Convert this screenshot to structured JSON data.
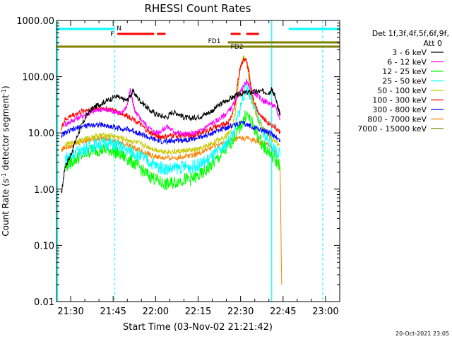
{
  "chart_data": {
    "type": "line",
    "title": "RHESSI Count Rates",
    "xlabel": "Start Time (03-Nov-02 21:21:42)",
    "ylabel_main": "Count Rate (s",
    "ylabel_sup1": "-1",
    "ylabel_mid": " detector segment",
    "ylabel_sup2": "-1",
    "ylabel_end": ")",
    "y_log": true,
    "ylim": [
      0.01,
      1000
    ],
    "xlim_min": [
      1285,
      1385
    ],
    "ytick_labels": [
      {
        "value": 0.01,
        "label": "0.01"
      },
      {
        "value": 0.1,
        "label": "0.10"
      },
      {
        "value": 1,
        "label": "1.00"
      },
      {
        "value": 10,
        "label": "10.00"
      },
      {
        "value": 100,
        "label": "100.00"
      },
      {
        "value": 1000,
        "label": "1000.00"
      }
    ],
    "xtick_labels": [
      {
        "value": 1290,
        "label": "21:30"
      },
      {
        "value": 1305,
        "label": "21:45"
      },
      {
        "value": 1320,
        "label": "22:00"
      },
      {
        "value": 1335,
        "label": "22:15"
      },
      {
        "value": 1350,
        "label": "22:30"
      },
      {
        "value": 1365,
        "label": "22:45"
      },
      {
        "value": 1380,
        "label": "23:00"
      }
    ],
    "legend_title": "Det 1f,3f,4f,5f,6f,9f,",
    "legend_subtitle": "Att 0",
    "legend_position": "right",
    "series": [
      {
        "name": "3 - 6 keV",
        "color": "#000000",
        "x": [
          1286.7,
          1288,
          1290,
          1292,
          1294,
          1296,
          1298,
          1300,
          1302,
          1304,
          1306,
          1308,
          1310,
          1312,
          1314,
          1316,
          1318,
          1320,
          1322,
          1324,
          1326,
          1328,
          1330,
          1332,
          1334,
          1336,
          1338,
          1340,
          1342,
          1344,
          1346,
          1348,
          1350,
          1352,
          1354,
          1356,
          1358,
          1360,
          1361,
          1362,
          1363,
          1364
        ],
        "y": [
          0.8,
          2.5,
          4,
          8,
          14,
          22,
          28,
          32,
          36,
          40,
          45,
          40,
          38,
          55,
          40,
          32,
          25,
          22,
          20,
          19,
          24,
          22,
          19,
          18,
          19,
          20,
          22,
          25,
          30,
          35,
          40,
          45,
          50,
          52,
          53,
          54,
          55,
          52,
          60,
          48,
          30,
          22
        ]
      },
      {
        "name": "6 - 12 keV",
        "color": "#ff00ff",
        "x": [
          1288,
          1290,
          1292,
          1294,
          1296,
          1298,
          1300,
          1302,
          1304,
          1306,
          1308,
          1310,
          1311,
          1312,
          1313,
          1314,
          1316,
          1318,
          1320,
          1322,
          1324,
          1326,
          1328,
          1330,
          1332,
          1334,
          1336,
          1338,
          1340,
          1342,
          1344,
          1346,
          1348,
          1350,
          1352,
          1354,
          1356,
          1358,
          1360,
          1362,
          1364
        ],
        "y": [
          14,
          16,
          18,
          20,
          22,
          24,
          26,
          26,
          25,
          24,
          22,
          32,
          60,
          34,
          22,
          20,
          15,
          12,
          10,
          11,
          13,
          11,
          10,
          9.5,
          9.5,
          10,
          11,
          13,
          15,
          17,
          20,
          25,
          35,
          55,
          80,
          60,
          45,
          38,
          34,
          30,
          18
        ]
      },
      {
        "name": "12 - 25 keV",
        "color": "#00ff00",
        "x": [
          1288,
          1290,
          1292,
          1294,
          1296,
          1298,
          1300,
          1302,
          1304,
          1306,
          1308,
          1310,
          1312,
          1314,
          1316,
          1318,
          1320,
          1322,
          1324,
          1326,
          1328,
          1330,
          1332,
          1334,
          1336,
          1338,
          1340,
          1342,
          1344,
          1346,
          1348,
          1350,
          1352,
          1354,
          1356,
          1358,
          1360,
          1362,
          1364
        ],
        "y": [
          2.5,
          3,
          3.5,
          4,
          4.5,
          5,
          5,
          5,
          5,
          4.5,
          4,
          3.5,
          3,
          2.5,
          2,
          1.7,
          1.5,
          1.3,
          1.2,
          1.3,
          1.4,
          1.5,
          1.5,
          1.6,
          1.8,
          2.2,
          2.8,
          3.5,
          4.5,
          6,
          9,
          13,
          22,
          15,
          9,
          6,
          4.5,
          3.5,
          2.5
        ]
      },
      {
        "name": "25 - 50 keV",
        "color": "#00ffff",
        "x": [
          1288,
          1290,
          1292,
          1294,
          1296,
          1298,
          1300,
          1302,
          1304,
          1306,
          1308,
          1310,
          1312,
          1314,
          1316,
          1318,
          1320,
          1322,
          1324,
          1326,
          1328,
          1330,
          1332,
          1334,
          1336,
          1338,
          1340,
          1342,
          1344,
          1346,
          1348,
          1350,
          1352,
          1354,
          1356,
          1358,
          1360,
          1362,
          1364
        ],
        "y": [
          3.5,
          4,
          4.5,
          5,
          5.5,
          6,
          6.5,
          6.5,
          6.5,
          6,
          5.5,
          5,
          4.5,
          4,
          3.5,
          3,
          2.6,
          2.4,
          2.3,
          2.3,
          2.4,
          2.5,
          2.5,
          2.6,
          2.8,
          3.2,
          3.8,
          4.5,
          5.5,
          7.5,
          12,
          30,
          70,
          40,
          18,
          10,
          7,
          5,
          4
        ]
      },
      {
        "name": "50 - 100 keV",
        "color": "#c8c800",
        "x": [
          1288,
          1290,
          1292,
          1294,
          1296,
          1298,
          1300,
          1302,
          1304,
          1306,
          1308,
          1310,
          1312,
          1314,
          1316,
          1318,
          1320,
          1322,
          1324,
          1326,
          1328,
          1330,
          1332,
          1334,
          1336,
          1338,
          1340,
          1342,
          1344,
          1346,
          1348,
          1349,
          1350,
          1351,
          1352,
          1353,
          1354,
          1356,
          1358,
          1360,
          1362,
          1364
        ],
        "y": [
          6,
          6.5,
          7,
          7.5,
          8,
          8.5,
          9,
          9,
          9,
          8.5,
          8,
          7.5,
          7,
          6.5,
          6,
          5.5,
          5,
          4.8,
          4.6,
          4.6,
          4.7,
          4.8,
          4.9,
          5,
          5.2,
          5.8,
          6.5,
          7.5,
          8.5,
          10,
          20,
          60,
          150,
          220,
          200,
          90,
          40,
          18,
          12,
          9,
          7,
          6
        ]
      },
      {
        "name": "100 - 300 keV",
        "color": "#ff0000",
        "x": [
          1286.7,
          1288,
          1290,
          1292,
          1294,
          1296,
          1298,
          1300,
          1302,
          1304,
          1306,
          1308,
          1310,
          1312,
          1314,
          1316,
          1318,
          1320,
          1322,
          1324,
          1326,
          1328,
          1330,
          1332,
          1334,
          1336,
          1338,
          1340,
          1342,
          1344,
          1346,
          1348,
          1349,
          1350,
          1351,
          1352,
          1353,
          1354,
          1356,
          1358,
          1360,
          1362,
          1364
        ],
        "y": [
          12,
          17,
          20,
          22,
          24,
          26,
          27,
          28,
          27,
          26,
          24,
          22,
          20,
          18,
          15,
          12,
          10,
          9,
          8.5,
          8.5,
          9,
          9,
          9,
          9,
          9.5,
          10,
          11,
          12,
          13,
          14,
          16,
          30,
          80,
          160,
          200,
          190,
          120,
          50,
          25,
          18,
          15,
          13,
          10
        ]
      },
      {
        "name": "300 - 800 keV",
        "color": "#0000ff",
        "x": [
          1286.7,
          1288,
          1290,
          1292,
          1294,
          1296,
          1298,
          1300,
          1302,
          1304,
          1306,
          1308,
          1310,
          1312,
          1314,
          1316,
          1318,
          1320,
          1322,
          1324,
          1326,
          1328,
          1330,
          1332,
          1334,
          1336,
          1338,
          1340,
          1342,
          1344,
          1346,
          1348,
          1350,
          1352,
          1354,
          1356,
          1358,
          1360,
          1362,
          1364
        ],
        "y": [
          9,
          10,
          11,
          12,
          13,
          13.5,
          14,
          14,
          13.5,
          13,
          12.5,
          12,
          11.5,
          11,
          10,
          9,
          8,
          7.5,
          7,
          7,
          7.2,
          7.5,
          7.5,
          7.8,
          8,
          8.5,
          9,
          10,
          11,
          12,
          13,
          14,
          15,
          14,
          13,
          12,
          11,
          10,
          9,
          7
        ]
      },
      {
        "name": "800 - 7000 keV",
        "color": "#ff8000",
        "x": [
          1286.7,
          1288,
          1290,
          1292,
          1294,
          1296,
          1298,
          1300,
          1302,
          1304,
          1306,
          1308,
          1310,
          1312,
          1314,
          1316,
          1318,
          1320,
          1322,
          1324,
          1326,
          1328,
          1330,
          1332,
          1334,
          1336,
          1338,
          1340,
          1342,
          1344,
          1346,
          1348,
          1350,
          1352,
          1354,
          1356,
          1358,
          1360,
          1362,
          1363,
          1364,
          1364.5
        ],
        "y": [
          5,
          5.5,
          6,
          6.5,
          7,
          7.5,
          8,
          8,
          8,
          7.5,
          7,
          6.5,
          6,
          5.5,
          5,
          4.5,
          4,
          3.8,
          3.6,
          3.5,
          3.6,
          3.7,
          3.8,
          4,
          4.2,
          4.5,
          5,
          5.5,
          6,
          6.5,
          7,
          7.5,
          8,
          8,
          7.5,
          7,
          6.5,
          6,
          5,
          4,
          2,
          0.02
        ]
      },
      {
        "name": "7000 - 15000 keV",
        "color": "#808000",
        "x": [],
        "y": []
      }
    ],
    "flags": [
      {
        "label": "N",
        "color": "#00ffff"
      },
      {
        "label": "F",
        "color": "#ff0000"
      },
      {
        "label": "FD1",
        "color": "#808000"
      },
      {
        "label": "FD2",
        "color": "#808000"
      }
    ],
    "flag_intervals": {
      "N": [
        [
          1285,
          1305.5
        ],
        [
          1367,
          1385
        ]
      ],
      "F": [
        [
          1306.5,
          1319.5
        ],
        [
          1320.5,
          1323.5
        ],
        [
          1346.5,
          1350
        ],
        [
          1352,
          1356.5
        ]
      ],
      "FD1": [
        [
          1285,
          1385
        ]
      ],
      "FD2": [
        [
          1345.5,
          1385
        ]
      ]
    },
    "vlines_cyan_dashed": [
      1305.5,
      1379
    ],
    "vlines_cyan_solid": [
      1285.4,
      1361
    ],
    "footer_date": "20-Oct-2021 23:05"
  }
}
